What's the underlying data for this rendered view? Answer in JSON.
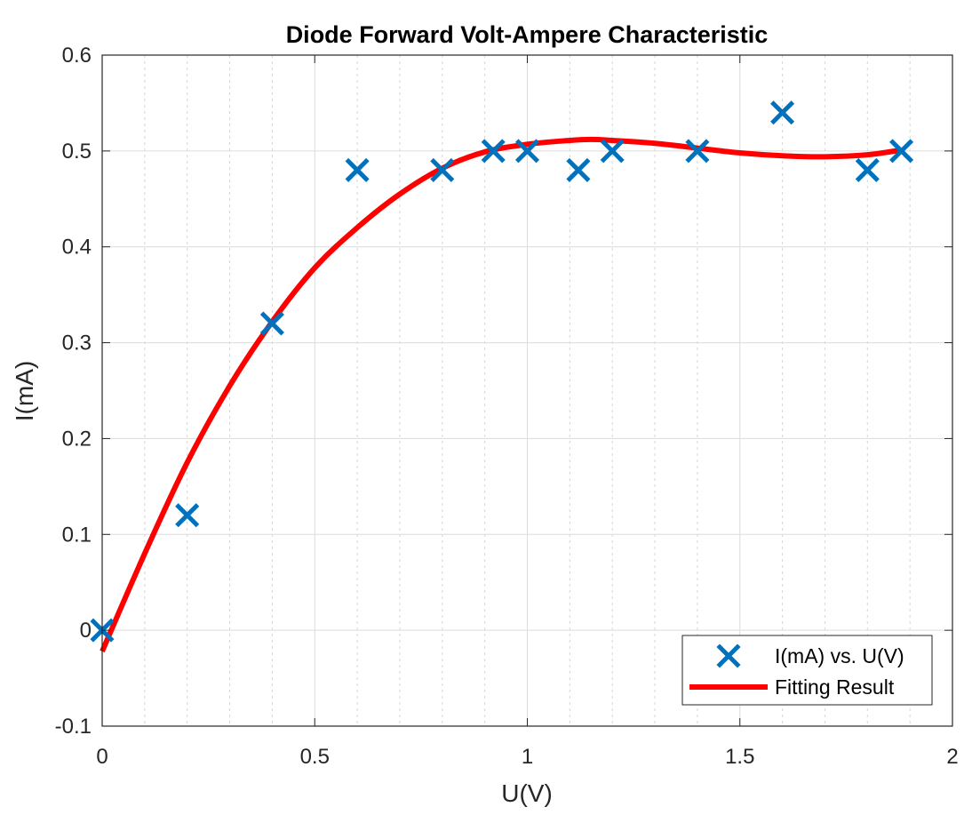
{
  "chart_data": {
    "type": "scatter",
    "title": "Diode Forward Volt-Ampere Characteristic",
    "xlabel": "U(V)",
    "ylabel": "I(mA)",
    "xlim": [
      0,
      2
    ],
    "ylim": [
      -0.1,
      0.6
    ],
    "x_ticks": [
      "0",
      "0.5",
      "1",
      "1.5",
      "2"
    ],
    "y_ticks": [
      "-0.1",
      "0",
      "0.1",
      "0.2",
      "0.3",
      "0.4",
      "0.5",
      "0.6"
    ],
    "grid": true,
    "minor_grid_x": true,
    "legend_position": "bottom-right",
    "series": [
      {
        "name": "I(mA) vs. U(V)",
        "kind": "scatter",
        "marker": "x",
        "color": "#0072BD",
        "x": [
          0,
          0.2,
          0.4,
          0.6,
          0.8,
          0.92,
          1.0,
          1.12,
          1.2,
          1.4,
          1.6,
          1.8,
          1.88
        ],
        "y": [
          0,
          0.12,
          0.32,
          0.48,
          0.48,
          0.5,
          0.5,
          0.48,
          0.5,
          0.5,
          0.54,
          0.48,
          0.5
        ]
      },
      {
        "name": "Fitting Result",
        "kind": "line",
        "color": "#FF0000",
        "x": [
          0,
          0.1,
          0.2,
          0.3,
          0.4,
          0.5,
          0.6,
          0.7,
          0.8,
          0.9,
          1.0,
          1.1,
          1.15,
          1.2,
          1.3,
          1.4,
          1.5,
          1.6,
          1.7,
          1.8,
          1.88
        ],
        "y": [
          -0.022,
          0.08,
          0.175,
          0.255,
          0.322,
          0.378,
          0.42,
          0.455,
          0.482,
          0.499,
          0.507,
          0.511,
          0.512,
          0.511,
          0.508,
          0.503,
          0.498,
          0.495,
          0.494,
          0.496,
          0.501
        ]
      }
    ]
  }
}
